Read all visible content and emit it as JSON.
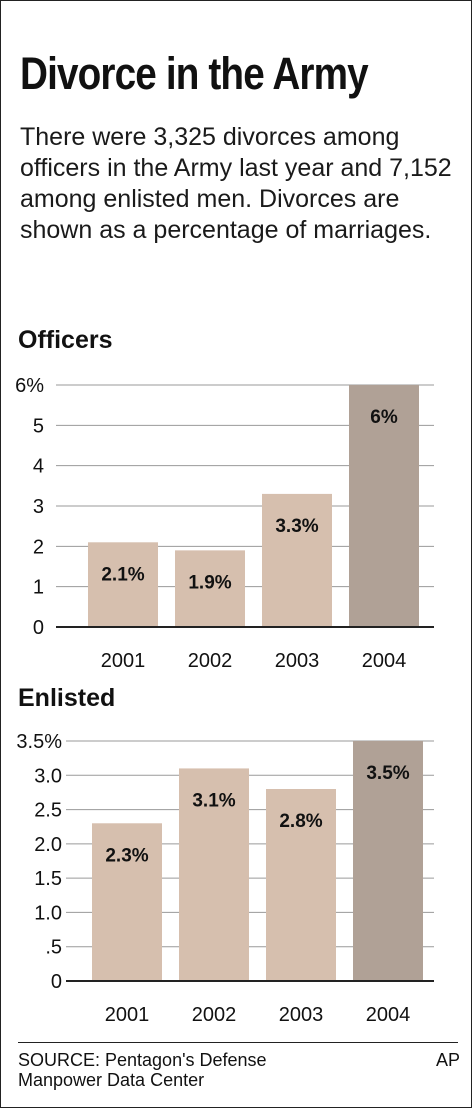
{
  "header": {
    "title": "Divorce in the Army",
    "subtitle": "There were 3,325 divorces among officers in the Army last year and 7,152 among enlisted men. Divorces are shown as a percentage of marriages."
  },
  "colors": {
    "bar_light": "#d6bfae",
    "bar_dark": "#b0a196",
    "grid": "#9a9a9a",
    "axis": "#222222"
  },
  "footer": {
    "source_line1": "SOURCE: Pentagon's Defense",
    "source_line2": "Manpower Data Center",
    "credit": "AP"
  },
  "chart_data": [
    {
      "type": "bar",
      "title": "Officers",
      "categories": [
        "2001",
        "2002",
        "2003",
        "2004"
      ],
      "values": [
        2.1,
        1.9,
        3.3,
        6
      ],
      "data_labels": [
        "2.1%",
        "1.9%",
        "3.3%",
        "6%"
      ],
      "highlight_index": 3,
      "ylim": [
        0,
        6
      ],
      "yticks": [
        0,
        1,
        2,
        3,
        4,
        5,
        6
      ],
      "ytick_labels": [
        "0",
        "1",
        "2",
        "3",
        "4",
        "5",
        "6%"
      ],
      "grid": true
    },
    {
      "type": "bar",
      "title": "Enlisted",
      "categories": [
        "2001",
        "2002",
        "2003",
        "2004"
      ],
      "values": [
        2.3,
        3.1,
        2.8,
        3.5
      ],
      "data_labels": [
        "2.3%",
        "3.1%",
        "2.8%",
        "3.5%"
      ],
      "highlight_index": 3,
      "ylim": [
        0,
        3.5
      ],
      "yticks": [
        0,
        0.5,
        1.0,
        1.5,
        2.0,
        2.5,
        3.0,
        3.5
      ],
      "ytick_labels": [
        "0",
        ".5",
        "1.0",
        "1.5",
        "2.0",
        "2.5",
        "3.0",
        "3.5%"
      ],
      "grid": true
    }
  ]
}
